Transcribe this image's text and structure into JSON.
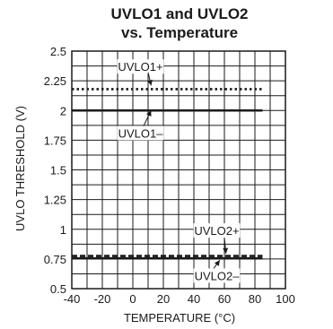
{
  "chart_data": {
    "type": "line",
    "title_lines": [
      "UVLO1 and UVLO2",
      "vs. Temperature"
    ],
    "xlabel": "TEMPERATURE (°C)",
    "ylabel": "UVLO THRESHOLD (V)",
    "xlim": [
      -40,
      100
    ],
    "ylim": [
      0.5,
      2.5
    ],
    "xticks": [
      "-40",
      "-20",
      "0",
      "20",
      "40",
      "60",
      "80",
      "100"
    ],
    "yticks": [
      "0.5",
      "0.75",
      "1",
      "1.25",
      "1.5",
      "1.75",
      "2",
      "2.25",
      "2.5"
    ],
    "grid": true,
    "series": [
      {
        "name": "UVLO1+",
        "style": "dotted",
        "x": [
          -40,
          85
        ],
        "y": [
          2.18,
          2.18
        ]
      },
      {
        "name": "UVLO1–",
        "style": "solid",
        "x": [
          -40,
          85
        ],
        "y": [
          2.0,
          2.0
        ]
      },
      {
        "name": "UVLO2+",
        "style": "dashed",
        "x": [
          -40,
          85
        ],
        "y": [
          0.775,
          0.775
        ]
      },
      {
        "name": "UVLO2–",
        "style": "solid",
        "x": [
          -40,
          85
        ],
        "y": [
          0.755,
          0.755
        ]
      }
    ],
    "annotations": [
      "UVLO1+",
      "UVLO1–",
      "UVLO2+",
      "UVLO2–"
    ]
  },
  "colors": {
    "line": "#1a1a1a",
    "grid": "#1a1a1a",
    "background": "#ffffff"
  }
}
